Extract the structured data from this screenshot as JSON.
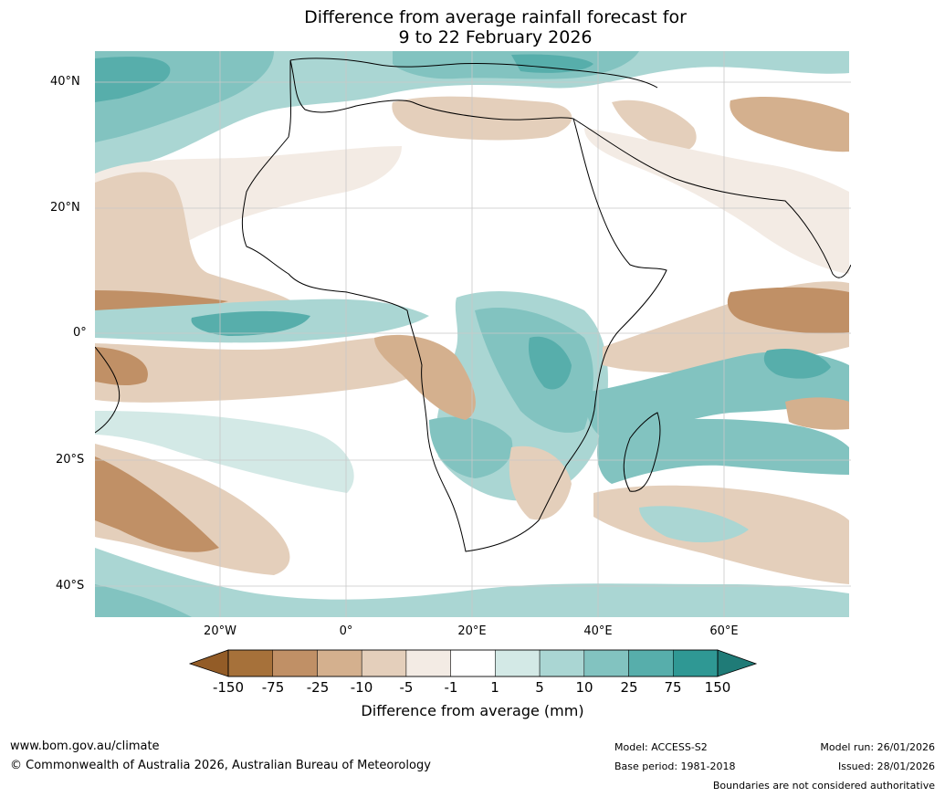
{
  "title": {
    "line1": "Difference from average rainfall forecast for",
    "line2": "9 to 22 February 2026"
  },
  "axes": {
    "lat_labels": [
      "40°N",
      "20°N",
      "0°",
      "20°S",
      "40°S"
    ],
    "lon_labels": [
      "20°W",
      "0°",
      "20°E",
      "40°E",
      "60°E"
    ]
  },
  "colorbar": {
    "ticks": [
      "-150",
      "-75",
      "-25",
      "-10",
      "-5",
      "-1",
      "1",
      "5",
      "10",
      "25",
      "75",
      "150"
    ],
    "colors": [
      "#a6713a",
      "#c09066",
      "#d4b08e",
      "#e4cfbb",
      "#f3ebe4",
      "#ffffff",
      "#d3e9e6",
      "#aad6d3",
      "#82c3c0",
      "#57aeab",
      "#2f9894"
    ],
    "title": "Difference from average (mm)"
  },
  "footer": {
    "url": "www.bom.gov.au/climate",
    "copyright": "© Commonwealth of Australia 2026, Australian Bureau of Meteorology",
    "model": "Model: ACCESS-S2",
    "base_period": "Base period: 1981-2018",
    "model_run": "Model run: 26/01/2026",
    "issued": "Issued: 28/01/2026",
    "disclaimer": "Boundaries are not considered authoritative"
  }
}
